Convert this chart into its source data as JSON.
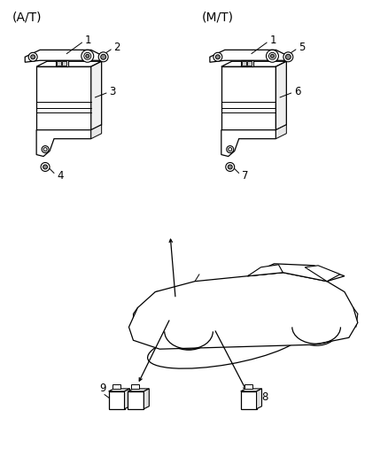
{
  "bg_color": "#ffffff",
  "line_color": "#000000",
  "figsize": [
    4.38,
    5.33
  ],
  "dpi": 100,
  "label_AT": "(A/T)",
  "label_MT": "(M/T)",
  "font_label": 10,
  "font_num": 8.5
}
